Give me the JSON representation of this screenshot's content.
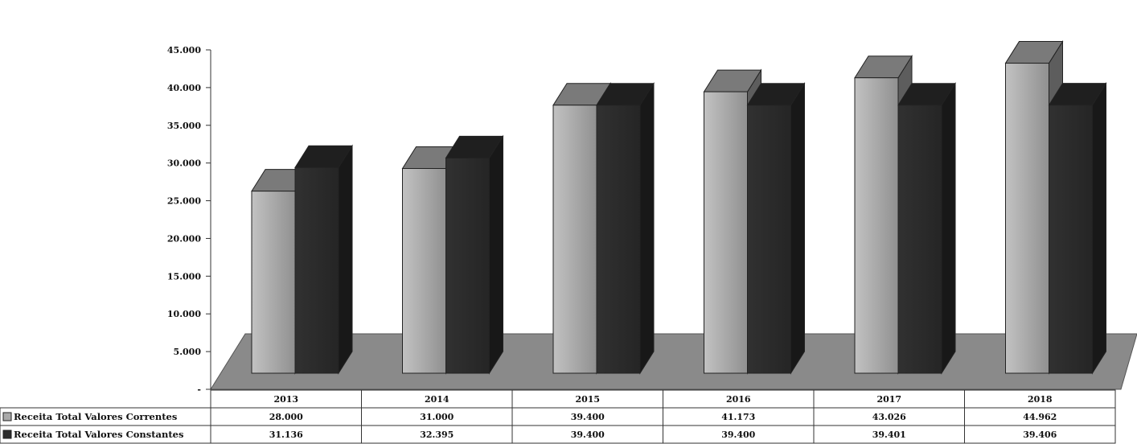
{
  "chart_data": {
    "type": "bar",
    "categories": [
      "2013",
      "2014",
      "2015",
      "2016",
      "2017",
      "2018"
    ],
    "series": [
      {
        "name": "Receita Total Valores Correntes",
        "values": [
          28.0,
          31.0,
          39.4,
          41.173,
          43.026,
          44.962
        ],
        "color": "#a9a9a9"
      },
      {
        "name": "Receita Total Valores Constantes",
        "values": [
          31.136,
          32.395,
          39.4,
          39.4,
          39.401,
          39.406
        ],
        "color": "#2b2b2b"
      }
    ],
    "table_values": [
      [
        "28.000",
        "31.000",
        "39.400",
        "41.173",
        "43.026",
        "44.962"
      ],
      [
        "31.136",
        "32.395",
        "39.400",
        "39.400",
        "39.401",
        "39.406"
      ]
    ],
    "y_ticks": [
      {
        "value": 0,
        "label": "-"
      },
      {
        "value": 5,
        "label": "5.000"
      },
      {
        "value": 10,
        "label": "10.000"
      },
      {
        "value": 15,
        "label": "15.000"
      },
      {
        "value": 20,
        "label": "20.000"
      },
      {
        "value": 25,
        "label": "25.000"
      },
      {
        "value": 30,
        "label": "30.000"
      },
      {
        "value": 35,
        "label": "35.000"
      },
      {
        "value": 40,
        "label": "40.000"
      },
      {
        "value": 45,
        "label": "45.000"
      }
    ],
    "ylim": [
      0,
      45
    ],
    "style": "3d-column",
    "legend": "data-table-left",
    "grid": false,
    "title": "",
    "xlabel": "",
    "ylabel": "",
    "floor_color": "#8a8a8a"
  }
}
